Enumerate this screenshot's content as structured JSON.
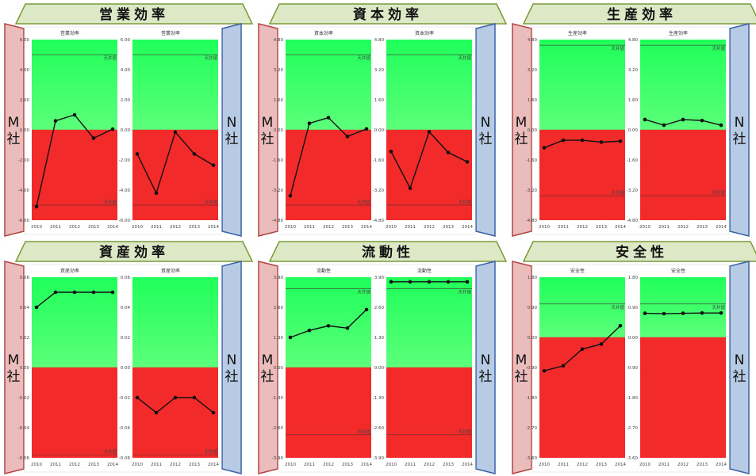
{
  "company_left": "M社",
  "company_right": "N社",
  "ideal_label": "天井値",
  "colors": {
    "green_top": "#1fff5a",
    "green_bottom": "#5cff7a",
    "red": "#f22a2a",
    "banner_fill": "#dde8c6",
    "banner_stroke": "#7a9a3a",
    "left_tab_fill": "#ebbcbc",
    "left_tab_stroke": "#b24444",
    "right_tab_fill": "#b8cbe4",
    "right_tab_stroke": "#3a62a8"
  },
  "chart_data": [
    {
      "title": "営業効率",
      "type": "line",
      "panels": [
        {
          "company": "M社",
          "title": "営業効率",
          "x": [
            2010,
            2011,
            2012,
            2013,
            2014
          ],
          "y": [
            -5.1,
            0.6,
            1.0,
            -0.55,
            0.05
          ],
          "ylim": [
            -6,
            6
          ],
          "yticks": [
            "6.00",
            "4.00",
            "2.00",
            "0.00",
            "-2.00",
            "-4.00",
            "-6.00"
          ],
          "ideal_upper": 5.0,
          "ideal_lower": -5.0
        },
        {
          "company": "N社",
          "title": "営業効率",
          "x": [
            2010,
            2011,
            2012,
            2013,
            2014
          ],
          "y": [
            -1.6,
            -4.2,
            -0.15,
            -1.6,
            -2.35
          ],
          "ylim": [
            -6,
            6
          ],
          "yticks": [
            "6.00",
            "4.00",
            "2.00",
            "0.00",
            "-2.00",
            "-4.00",
            "-6.00"
          ],
          "ideal_upper": 5.0,
          "ideal_lower": -5.0
        }
      ]
    },
    {
      "title": "資本効率",
      "type": "line",
      "panels": [
        {
          "company": "M社",
          "title": "資本効率",
          "x": [
            2010,
            2011,
            2012,
            2013,
            2014
          ],
          "y": [
            -3.5,
            0.35,
            0.65,
            -0.35,
            0.05
          ],
          "ylim": [
            -4.8,
            4.8
          ],
          "yticks": [
            "4.80",
            "3.20",
            "1.60",
            "0.00",
            "-1.60",
            "-3.20",
            "-4.80"
          ],
          "ideal_upper": 4.0,
          "ideal_lower": -4.0
        },
        {
          "company": "N社",
          "title": "資本効率",
          "x": [
            2010,
            2011,
            2012,
            2013,
            2014
          ],
          "y": [
            -1.15,
            -3.1,
            -0.1,
            -1.2,
            -1.7
          ],
          "ylim": [
            -4.8,
            4.8
          ],
          "yticks": [
            "4.80",
            "3.20",
            "1.60",
            "0.00",
            "-1.60",
            "-3.20",
            "-4.80"
          ],
          "ideal_upper": 4.0,
          "ideal_lower": -4.0
        }
      ]
    },
    {
      "title": "生産効率",
      "type": "line",
      "panels": [
        {
          "company": "M社",
          "title": "生産効率",
          "x": [
            2010,
            2011,
            2012,
            2013,
            2014
          ],
          "y": [
            -0.95,
            -0.55,
            -0.55,
            -0.65,
            -0.6
          ],
          "ylim": [
            -4.8,
            4.8
          ],
          "yticks": [
            "4.80",
            "3.20",
            "1.60",
            "0.00",
            "-1.60",
            "-3.20",
            "-4.80"
          ],
          "ideal_upper": 4.5,
          "ideal_lower": -3.5
        },
        {
          "company": "N社",
          "title": "生産効率",
          "x": [
            2010,
            2011,
            2012,
            2013,
            2014
          ],
          "y": [
            0.55,
            0.25,
            0.55,
            0.5,
            0.25
          ],
          "ylim": [
            -4.8,
            4.8
          ],
          "yticks": [
            "4.80",
            "3.20",
            "1.60",
            "0.00",
            "-1.60",
            "-3.20",
            "-4.80"
          ],
          "ideal_upper": 4.5,
          "ideal_lower": -3.5
        }
      ]
    },
    {
      "title": "資産効率",
      "type": "line",
      "panels": [
        {
          "company": "M社",
          "title": "資産効率",
          "x": [
            2010,
            2011,
            2012,
            2013,
            2014
          ],
          "y": [
            0.04,
            0.05,
            0.05,
            0.05,
            0.05
          ],
          "ylim": [
            -0.06,
            0.06
          ],
          "yticks": [
            "0.06",
            "0.04",
            "0.02",
            "0.00",
            "-0.02",
            "-0.04",
            "-0.06"
          ],
          "ideal_upper": null,
          "ideal_lower": -0.058
        },
        {
          "company": "N社",
          "title": "資産効率",
          "x": [
            2010,
            2011,
            2012,
            2013,
            2014
          ],
          "y": [
            -0.02,
            -0.03,
            -0.02,
            -0.02,
            -0.03
          ],
          "ylim": [
            -0.06,
            0.06
          ],
          "yticks": [
            "0.06",
            "0.04",
            "0.02",
            "0.00",
            "-0.02",
            "-0.04",
            "-0.06"
          ],
          "ideal_upper": null,
          "ideal_lower": -0.058
        }
      ]
    },
    {
      "title": "流動性",
      "type": "line",
      "panels": [
        {
          "company": "M社",
          "title": "流動性",
          "x": [
            2010,
            2011,
            2012,
            2013,
            2014
          ],
          "y": [
            1.3,
            1.6,
            1.8,
            1.7,
            2.5
          ],
          "ylim": [
            -3.9,
            3.9
          ],
          "yticks": [
            "3.90",
            "2.60",
            "1.30",
            "0.00",
            "-1.30",
            "-2.60",
            "-3.90"
          ],
          "ideal_upper": 3.4,
          "ideal_lower": -2.9
        },
        {
          "company": "N社",
          "title": "流動性",
          "x": [
            2010,
            2011,
            2012,
            2013,
            2014
          ],
          "y": [
            3.7,
            3.7,
            3.7,
            3.7,
            3.7
          ],
          "ylim": [
            -3.9,
            3.9
          ],
          "yticks": [
            "3.90",
            "2.60",
            "1.30",
            "0.00",
            "-1.30",
            "-2.60",
            "-3.90"
          ],
          "ideal_upper": 3.4,
          "ideal_lower": -2.9
        }
      ]
    },
    {
      "title": "安全性",
      "type": "line",
      "panels": [
        {
          "company": "M社",
          "title": "安全性",
          "x": [
            2010,
            2011,
            2012,
            2013,
            2014
          ],
          "y": [
            -1.0,
            -0.85,
            -0.35,
            -0.2,
            0.35
          ],
          "ylim": [
            -3.6,
            1.8
          ],
          "yticks": [
            "1.80",
            "0.90",
            "0.00",
            "-0.90",
            "-1.80",
            "-2.70",
            "-3.60"
          ],
          "ideal_upper": 1.0,
          "ideal_lower": null
        },
        {
          "company": "N社",
          "title": "安全性",
          "x": [
            2010,
            2011,
            2012,
            2013,
            2014
          ],
          "y": [
            0.72,
            0.71,
            0.72,
            0.73,
            0.73
          ],
          "ylim": [
            -3.6,
            1.8
          ],
          "yticks": [
            "1.80",
            "0.90",
            "0.00",
            "-0.90",
            "-1.80",
            "-2.70",
            "-3.60"
          ],
          "ideal_upper": 1.0,
          "ideal_lower": null
        }
      ]
    }
  ]
}
